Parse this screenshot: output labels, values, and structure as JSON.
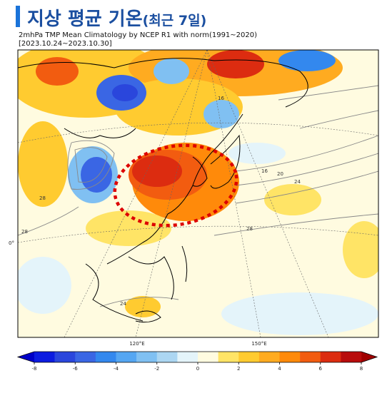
{
  "header": {
    "title": "지상 평균 기온",
    "title_suffix": "(최근 7일)",
    "subtitle_line1": "2mhPa TMP Mean Climatology by NCEP R1 with norm(1991~2020)",
    "subtitle_line2": "[2023.10.24~2023.10.30]"
  },
  "map": {
    "lon_labels": [
      "120°E",
      "150°E"
    ],
    "lat_labels": [
      "0°"
    ],
    "contour_labels": [
      "16",
      "20",
      "24",
      "28",
      "28",
      "24",
      "16",
      "28"
    ]
  },
  "colorbar": {
    "bounds": [
      -8,
      -7,
      -6,
      -5,
      -4,
      -3,
      -2,
      -1,
      0,
      1,
      2,
      3,
      4,
      5,
      6,
      7,
      8
    ],
    "colors": [
      "#0c1ce0",
      "#2a46dc",
      "#3a66e4",
      "#3388ee",
      "#55a6f2",
      "#80c0f2",
      "#acd6f2",
      "#e4f4fa",
      "#fffbe0",
      "#ffe466",
      "#ffcb30",
      "#ffab20",
      "#ff8a0a",
      "#f25c10",
      "#dc2c10",
      "#b80c0c"
    ],
    "extend_colors": [
      "#0000c8",
      "#a00000"
    ],
    "ticks": [
      -8,
      -6,
      -4,
      -2,
      0,
      2,
      4,
      6,
      8
    ]
  }
}
